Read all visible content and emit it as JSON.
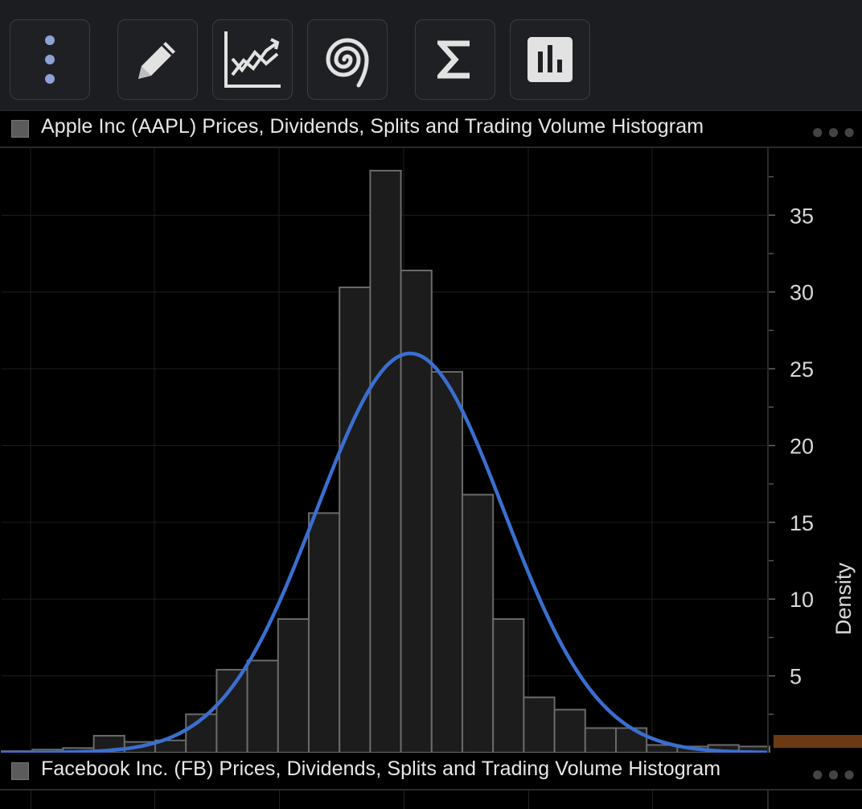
{
  "toolbar": {
    "buttons": [
      {
        "icon": "more-vertical-icon",
        "color": "#8ea2d6"
      },
      {
        "icon": "pencil-icon"
      },
      {
        "icon": "line-chart-icon"
      },
      {
        "icon": "spiral-icon"
      },
      {
        "icon": "sigma-icon"
      },
      {
        "icon": "bar-chart-icon"
      }
    ]
  },
  "panels": [
    {
      "title": "Apple Inc (AAPL) Prices, Dividends, Splits and Trading Volume Histogram"
    },
    {
      "title": "Facebook Inc. (FB) Prices, Dividends, Splits and Trading Volume Histogram"
    }
  ],
  "chart_data": {
    "type": "bar",
    "title": "",
    "ylabel": "Density",
    "ylim": [
      0,
      37.9
    ],
    "yticks": [
      5,
      10,
      15,
      20,
      25,
      30,
      35
    ],
    "bins": 25,
    "values": [
      0.1,
      0.2,
      0.3,
      1.1,
      0.7,
      0.8,
      2.5,
      5.4,
      6.0,
      8.7,
      15.6,
      30.3,
      37.9,
      31.4,
      24.8,
      16.8,
      8.7,
      3.6,
      2.8,
      1.6,
      1.6,
      0.5,
      0.4,
      0.5,
      0.4
    ],
    "series": [
      {
        "type": "line",
        "color": "#3a6fcf",
        "peak": 26.0,
        "peak_bin": 13.3,
        "sigma_bins": 3.05
      }
    ],
    "bar_fill": "#1c1c1c",
    "bar_stroke": "#6a6a6a",
    "grid": true,
    "marker_color": "#6b3a14"
  }
}
